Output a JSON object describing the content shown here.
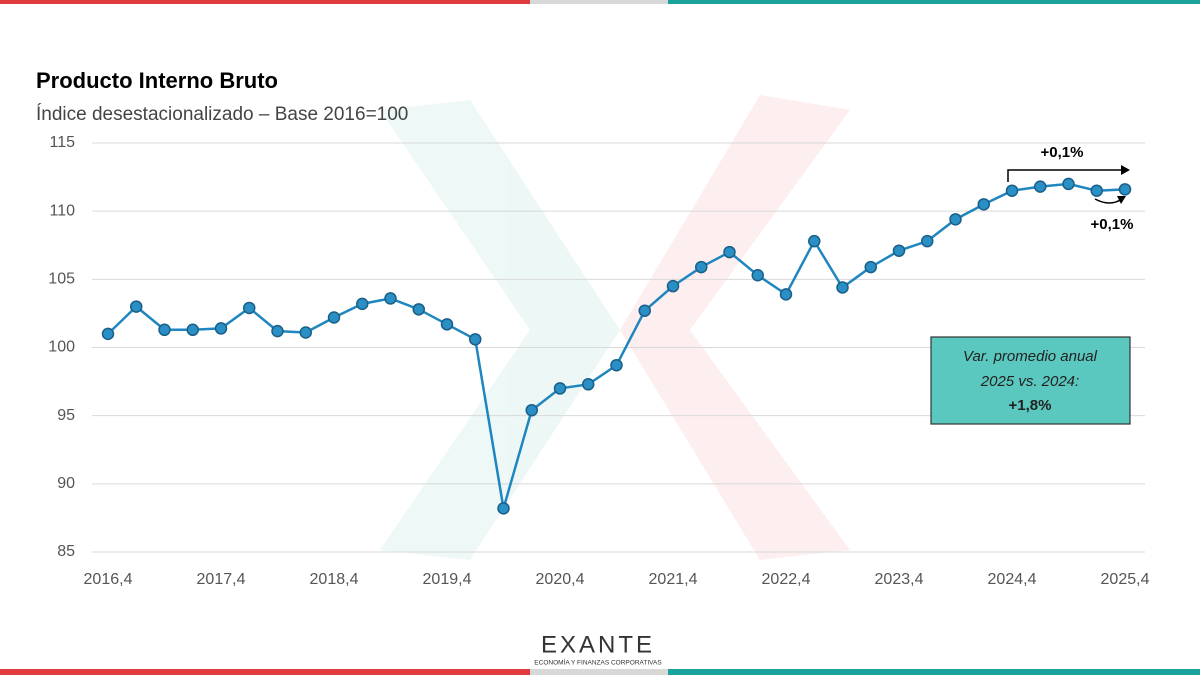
{
  "chart_data": {
    "type": "line",
    "title": "Producto Interno Bruto",
    "subtitle": "Índice desestacionalizado – Base 2016=100",
    "categories": [
      "2016,4",
      null,
      null,
      null,
      "2017,4",
      null,
      null,
      null,
      "2018,4",
      null,
      null,
      null,
      "2019,4",
      null,
      null,
      null,
      "2020,4",
      null,
      null,
      null,
      "2021,4",
      null,
      null,
      null,
      "2022,4",
      null,
      null,
      null,
      "2023,4",
      null,
      null,
      null,
      "2024,4",
      null,
      null,
      null,
      "2025,4"
    ],
    "values": [
      101.0,
      103.0,
      101.3,
      101.3,
      101.4,
      102.9,
      101.2,
      101.1,
      102.2,
      103.2,
      103.6,
      102.8,
      101.7,
      100.6,
      88.2,
      95.4,
      97.0,
      97.3,
      98.7,
      102.7,
      104.5,
      105.9,
      107.0,
      105.3,
      103.9,
      107.8,
      104.4,
      105.9,
      107.1,
      107.8,
      109.4,
      110.5,
      111.5,
      111.8,
      112.0,
      111.5,
      111.6
    ],
    "color": "#2a8fc4",
    "ylim": [
      85,
      115
    ],
    "yticks": [
      85,
      90,
      95,
      100,
      105,
      110,
      115
    ],
    "grid": true,
    "annotations": [
      "+0,1%",
      "+0,1%"
    ],
    "note": [
      "Var. promedio anual",
      "2025 vs. 2024:",
      "+1,8%"
    ]
  },
  "logo": {
    "name": "EXANTE",
    "tagline": "ECONOMÍA Y FINANZAS CORPORATIVAS"
  }
}
